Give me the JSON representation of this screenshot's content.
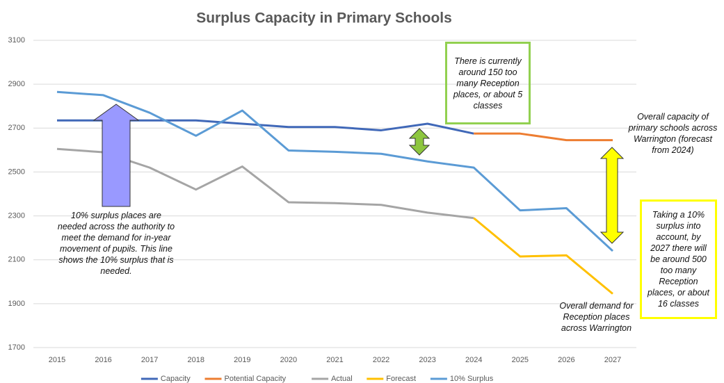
{
  "chart_data": {
    "type": "line",
    "title": "Surplus Capacity in Primary Schools",
    "categories": [
      "2015",
      "2016",
      "2017",
      "2018",
      "2019",
      "2020",
      "2021",
      "2022",
      "2023",
      "2024",
      "2025",
      "2026",
      "2027"
    ],
    "series": [
      {
        "name": "Capacity",
        "color": "#4068b8",
        "values": [
          2735,
          2735,
          2735,
          2735,
          2720,
          2705,
          2705,
          2690,
          2720,
          2675,
          null,
          null,
          null
        ]
      },
      {
        "name": "Potential Capacity",
        "color": "#ed7d31",
        "values": [
          null,
          null,
          null,
          null,
          null,
          null,
          null,
          null,
          null,
          2675,
          2675,
          2645,
          2645
        ]
      },
      {
        "name": "Actual",
        "color": "#a5a5a5",
        "values": [
          2605,
          2590,
          2520,
          2420,
          2525,
          2362,
          2358,
          2350,
          2315,
          2290,
          null,
          null,
          null
        ]
      },
      {
        "name": "Forecast",
        "color": "#ffc000",
        "values": [
          null,
          null,
          null,
          null,
          null,
          null,
          null,
          null,
          null,
          2290,
          2115,
          2120,
          1945
        ]
      },
      {
        "name": "10% Surplus",
        "color": "#5b9bd5",
        "values": [
          2865,
          2850,
          2770,
          2665,
          2780,
          2598,
          2592,
          2583,
          2548,
          2520,
          2325,
          2335,
          2140
        ]
      }
    ],
    "ylim": [
      1700,
      3100
    ],
    "yticks": [
      1700,
      1900,
      2100,
      2300,
      2500,
      2700,
      2900,
      3100
    ],
    "grid": true,
    "annotations": [
      "10% surplus places are needed across the authority to meet the demand for in-year movement of pupils. This line shows the 10% surplus that is needed.",
      "There is currently around 150 too many Reception places, or about 5 classes",
      "Overall capacity of primary schools across Warrington (forecast from 2024)",
      "Taking a 10% surplus into account, by 2027 there will be around 500 too many Reception places, or about 16 classes",
      "Overall demand for Reception places across Warrington"
    ]
  }
}
